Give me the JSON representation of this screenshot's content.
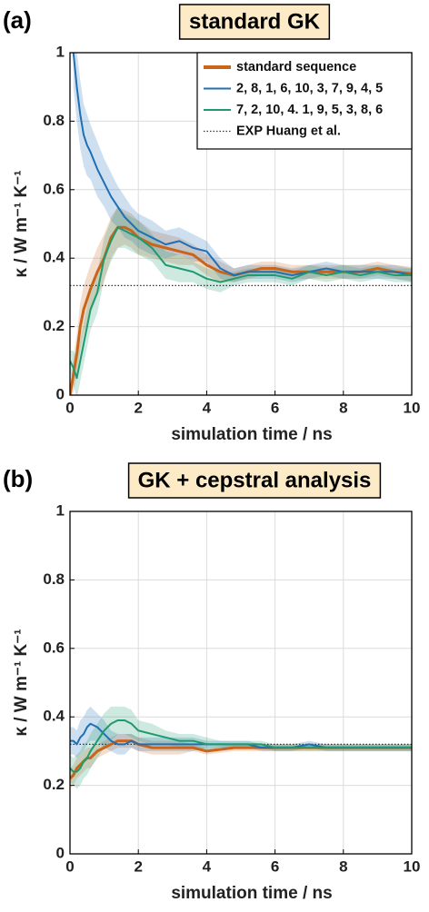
{
  "chart_data": [
    {
      "type": "line",
      "panel_label": "(a)",
      "title": "standard GK",
      "x_label": "simulation time / ns",
      "y_label": "κ / W m⁻¹ K⁻¹",
      "x": [
        0,
        0.1,
        0.2,
        0.3,
        0.4,
        0.5,
        0.6,
        0.8,
        1,
        1.2,
        1.4,
        1.6,
        1.8,
        2,
        2.4,
        2.8,
        3.2,
        3.6,
        4,
        4.4,
        4.8,
        5.2,
        5.6,
        6,
        6.5,
        7,
        7.5,
        8,
        8.5,
        9,
        9.5,
        10
      ],
      "series": [
        {
          "name": "standard sequence",
          "color": "#c8651b",
          "values": [
            0,
            0.06,
            0.12,
            0.2,
            0.25,
            0.28,
            0.31,
            0.36,
            0.4,
            0.46,
            0.49,
            0.49,
            0.48,
            0.46,
            0.44,
            0.43,
            0.42,
            0.41,
            0.38,
            0.36,
            0.35,
            0.36,
            0.37,
            0.37,
            0.36,
            0.36,
            0.36,
            0.36,
            0.36,
            0.37,
            0.36,
            0.355
          ],
          "errors": [
            0.02,
            0.05,
            0.06,
            0.07,
            0.07,
            0.07,
            0.07,
            0.07,
            0.07,
            0.06,
            0.06,
            0.05,
            0.05,
            0.05,
            0.04,
            0.04,
            0.04,
            0.03,
            0.03,
            0.03,
            0.02,
            0.02,
            0.02,
            0.02,
            0.02,
            0.02,
            0.02,
            0.02,
            0.02,
            0.02,
            0.02,
            0.02
          ]
        },
        {
          "name": "2, 8, 1, 6, 10, 3, 7, 9, 4, 5",
          "color": "#1f6fb5",
          "values": [
            null,
            1,
            0.9,
            0.82,
            0.76,
            0.73,
            0.71,
            0.66,
            0.62,
            0.58,
            0.55,
            0.52,
            0.5,
            0.48,
            0.46,
            0.44,
            0.45,
            0.43,
            0.42,
            0.37,
            0.35,
            0.36,
            0.36,
            0.36,
            0.35,
            0.36,
            0.37,
            0.36,
            0.36,
            0.36,
            0.36,
            0.35
          ],
          "errors": [
            null,
            0.1,
            0.1,
            0.1,
            0.09,
            0.09,
            0.08,
            0.08,
            0.07,
            0.07,
            0.06,
            0.06,
            0.05,
            0.05,
            0.05,
            0.04,
            0.04,
            0.04,
            0.03,
            0.03,
            0.02,
            0.02,
            0.02,
            0.02,
            0.02,
            0.02,
            0.02,
            0.02,
            0.02,
            0.02,
            0.02,
            0.02
          ]
        },
        {
          "name": "7, 2, 10, 4. 1, 9, 5, 3, 8, 6",
          "color": "#1f9a6e",
          "values": [
            0.1,
            0.08,
            0.05,
            0.1,
            0.15,
            0.2,
            0.25,
            0.3,
            0.4,
            0.45,
            0.49,
            0.48,
            0.47,
            0.46,
            0.43,
            0.38,
            0.37,
            0.36,
            0.34,
            0.33,
            0.34,
            0.35,
            0.35,
            0.35,
            0.34,
            0.36,
            0.35,
            0.36,
            0.35,
            0.36,
            0.35,
            0.35
          ],
          "errors": [
            0.03,
            0.05,
            0.06,
            0.06,
            0.06,
            0.06,
            0.06,
            0.06,
            0.06,
            0.06,
            0.06,
            0.05,
            0.05,
            0.05,
            0.04,
            0.04,
            0.04,
            0.03,
            0.03,
            0.03,
            0.02,
            0.02,
            0.02,
            0.02,
            0.02,
            0.02,
            0.02,
            0.02,
            0.02,
            0.02,
            0.02,
            0.02
          ]
        }
      ],
      "reference": {
        "name": "EXP Huang et al.",
        "value": 0.32,
        "color": "#333333"
      },
      "xlim": [
        0,
        10
      ],
      "ylim": [
        0,
        1
      ],
      "xticks": [
        0,
        2,
        4,
        6,
        8,
        10
      ],
      "yticks": [
        0,
        0.2,
        0.4,
        0.6,
        0.8,
        1
      ],
      "grid": true,
      "legend": "upper right"
    },
    {
      "type": "line",
      "panel_label": "(b)",
      "title": "GK + cepstral analysis",
      "x_label": "simulation time / ns",
      "y_label": "κ / W m⁻¹ K⁻¹",
      "x": [
        0,
        0.1,
        0.2,
        0.3,
        0.4,
        0.5,
        0.6,
        0.8,
        1,
        1.2,
        1.4,
        1.6,
        1.8,
        2,
        2.4,
        2.8,
        3.2,
        3.6,
        4,
        4.4,
        4.8,
        5.2,
        5.6,
        6,
        6.5,
        7,
        7.5,
        8,
        8.5,
        9,
        9.5,
        10
      ],
      "series": [
        {
          "color": "#c8651b",
          "values": [
            0.22,
            0.23,
            0.25,
            0.26,
            0.27,
            0.28,
            0.28,
            0.3,
            0.31,
            0.32,
            0.33,
            0.33,
            0.33,
            0.32,
            0.31,
            0.31,
            0.31,
            0.31,
            0.3,
            0.305,
            0.31,
            0.31,
            0.31,
            0.31,
            0.31,
            0.31,
            0.31,
            0.31,
            0.31,
            0.31,
            0.31,
            0.31
          ],
          "errors": [
            0.03,
            0.03,
            0.03,
            0.03,
            0.03,
            0.03,
            0.03,
            0.02,
            0.02,
            0.02,
            0.02,
            0.02,
            0.02,
            0.02,
            0.02,
            0.02,
            0.02,
            0.01,
            0.01,
            0.01,
            0.01,
            0.01,
            0.01,
            0.01,
            0.01,
            0.01,
            0.01,
            0.01,
            0.01,
            0.01,
            0.01,
            0.01
          ]
        },
        {
          "color": "#1f6fb5",
          "values": [
            0.33,
            0.33,
            0.32,
            0.34,
            0.35,
            0.37,
            0.38,
            0.37,
            0.35,
            0.33,
            0.32,
            0.32,
            0.33,
            0.32,
            0.32,
            0.32,
            0.32,
            0.32,
            0.32,
            0.32,
            0.32,
            0.32,
            0.31,
            0.31,
            0.31,
            0.32,
            0.31,
            0.31,
            0.31,
            0.31,
            0.31,
            0.31
          ],
          "errors": [
            0.04,
            0.04,
            0.04,
            0.05,
            0.05,
            0.05,
            0.05,
            0.04,
            0.04,
            0.03,
            0.03,
            0.03,
            0.02,
            0.02,
            0.02,
            0.02,
            0.02,
            0.02,
            0.01,
            0.01,
            0.01,
            0.01,
            0.01,
            0.01,
            0.01,
            0.01,
            0.01,
            0.01,
            0.01,
            0.01,
            0.01,
            0.01
          ]
        },
        {
          "color": "#1f9a6e",
          "values": [
            0.25,
            0.24,
            0.24,
            0.25,
            0.27,
            0.28,
            0.3,
            0.33,
            0.36,
            0.38,
            0.39,
            0.39,
            0.38,
            0.36,
            0.35,
            0.34,
            0.33,
            0.33,
            0.32,
            0.32,
            0.32,
            0.32,
            0.32,
            0.31,
            0.31,
            0.31,
            0.31,
            0.31,
            0.31,
            0.31,
            0.31,
            0.31
          ],
          "errors": [
            0.04,
            0.04,
            0.05,
            0.05,
            0.05,
            0.05,
            0.05,
            0.05,
            0.05,
            0.05,
            0.04,
            0.04,
            0.04,
            0.03,
            0.03,
            0.02,
            0.02,
            0.02,
            0.02,
            0.01,
            0.01,
            0.01,
            0.01,
            0.01,
            0.01,
            0.01,
            0.01,
            0.01,
            0.01,
            0.01,
            0.01,
            0.01
          ]
        }
      ],
      "reference": {
        "value": 0.32,
        "color": "#333333"
      },
      "xlim": [
        0,
        10
      ],
      "ylim": [
        0,
        1
      ],
      "xticks": [
        0,
        2,
        4,
        6,
        8,
        10
      ],
      "yticks": [
        0,
        0.2,
        0.4,
        0.6,
        0.8,
        1
      ],
      "grid": true
    }
  ]
}
